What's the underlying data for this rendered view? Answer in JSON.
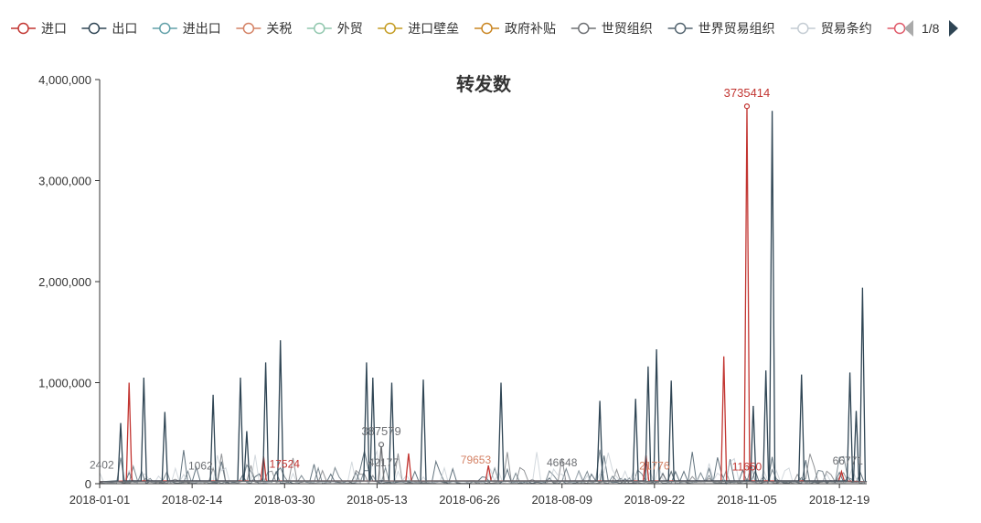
{
  "chart_data": {
    "type": "line",
    "title": "转发数",
    "xlabel": "",
    "ylabel": "",
    "ylim": [
      0,
      4000000
    ],
    "yticks": [
      0,
      1000000,
      2000000,
      3000000,
      4000000
    ],
    "ytick_labels": [
      "0",
      "1,000,000",
      "2,000,000",
      "3,000,000",
      "4,000,000"
    ],
    "xticks": [
      "2018-01-01",
      "2018-02-14",
      "2018-03-30",
      "2018-05-13",
      "2018-06-26",
      "2018-08-09",
      "2018-09-22",
      "2018-11-05",
      "2018-12-19"
    ],
    "x_range": [
      "2018-01-01",
      "2019-01-01"
    ],
    "grid": false,
    "legend": {
      "position": "top",
      "items": [
        {
          "name": "进口",
          "color": "#c23531"
        },
        {
          "name": "出口",
          "color": "#2f4554"
        },
        {
          "name": "进出口",
          "color": "#61a0a8"
        },
        {
          "name": "关税",
          "color": "#d48265"
        },
        {
          "name": "外贸",
          "color": "#91c7ae"
        },
        {
          "name": "进口壁垒",
          "color": "#c49c22"
        },
        {
          "name": "政府补贴",
          "color": "#ca8622"
        },
        {
          "name": "世贸组织",
          "color": "#6e7074"
        },
        {
          "name": "世界贸易组织",
          "color": "#546570"
        },
        {
          "name": "贸易条约",
          "color": "#c4ccd3"
        },
        {
          "name": "",
          "color": "#e05a6a"
        }
      ],
      "page": "1/8"
    },
    "series": [
      {
        "name": "进口",
        "color": "#c23531",
        "points": [
          [
            "2018-01-15",
            1000000
          ],
          [
            "2018-03-20",
            270000
          ],
          [
            "2018-05-28",
            300000
          ],
          [
            "2018-07-05",
            180000
          ],
          [
            "2018-09-18",
            280000
          ],
          [
            "2018-10-25",
            1260000
          ],
          [
            "2018-11-05",
            3735414
          ],
          [
            "2018-12-20",
            120000
          ]
        ]
      },
      {
        "name": "出口",
        "color": "#2f4554",
        "points": [
          [
            "2018-01-11",
            600000
          ],
          [
            "2018-01-22",
            1050000
          ],
          [
            "2018-02-01",
            710000
          ],
          [
            "2018-02-24",
            880000
          ],
          [
            "2018-03-09",
            1050000
          ],
          [
            "2018-03-12",
            520000
          ],
          [
            "2018-03-21",
            1200000
          ],
          [
            "2018-03-28",
            1420000
          ],
          [
            "2018-05-08",
            1200000
          ],
          [
            "2018-05-11",
            1050000
          ],
          [
            "2018-05-20",
            1000000
          ],
          [
            "2018-06-04",
            1030000
          ],
          [
            "2018-07-11",
            1000000
          ],
          [
            "2018-08-27",
            820000
          ],
          [
            "2018-09-13",
            840000
          ],
          [
            "2018-09-19",
            1160000
          ],
          [
            "2018-09-23",
            1330000
          ],
          [
            "2018-09-30",
            1020000
          ],
          [
            "2018-11-08",
            770000
          ],
          [
            "2018-11-14",
            1120000
          ],
          [
            "2018-11-17",
            3690000
          ],
          [
            "2018-12-01",
            1080000
          ],
          [
            "2018-12-24",
            1100000
          ],
          [
            "2018-12-27",
            720000
          ],
          [
            "2018-12-30",
            1940000
          ]
        ]
      },
      {
        "name": "世贸组织",
        "color": "#6e7074",
        "points": [
          [
            "2018-05-15",
            387579
          ]
        ]
      }
    ],
    "annotations": [
      {
        "text": "3735414",
        "x": "2018-11-05",
        "y": 3735414,
        "color": "#c23531"
      },
      {
        "text": "387579",
        "x": "2018-05-15",
        "y": 387579,
        "color": "#6e7074"
      },
      {
        "text": "2402",
        "x": "2018-01-02",
        "y": 150000,
        "color": "#6e7074"
      },
      {
        "text": "1062",
        "x": "2018-02-18",
        "y": 140000,
        "color": "#6e7074"
      },
      {
        "text": "17524",
        "x": "2018-03-30",
        "y": 160000,
        "color": "#c23531"
      },
      {
        "text": "42177",
        "x": "2018-05-16",
        "y": 170000,
        "color": "#6e7074"
      },
      {
        "text": "79653",
        "x": "2018-06-29",
        "y": 200000,
        "color": "#d48265"
      },
      {
        "text": "46648",
        "x": "2018-08-09",
        "y": 170000,
        "color": "#6e7074"
      },
      {
        "text": "21776",
        "x": "2018-09-22",
        "y": 140000,
        "color": "#d48265"
      },
      {
        "text": "11650",
        "x": "2018-11-05",
        "y": 130000,
        "color": "#c23531"
      },
      {
        "text": "66771",
        "x": "2018-12-23",
        "y": 190000,
        "color": "#6e7074"
      }
    ]
  }
}
